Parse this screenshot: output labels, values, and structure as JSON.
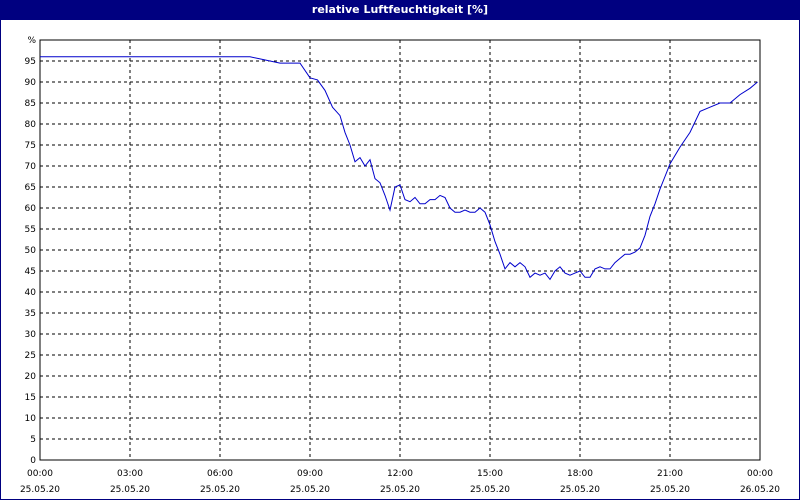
{
  "chart_data": {
    "type": "line",
    "title": "relative Luftfeuchtigkeit [%]",
    "ylabel": "%",
    "ylim": [
      0,
      100
    ],
    "y_ticks": [
      0,
      5,
      10,
      15,
      20,
      25,
      30,
      35,
      40,
      45,
      50,
      55,
      60,
      65,
      70,
      75,
      80,
      85,
      90,
      95
    ],
    "xlim": [
      "25.05.20 00:00",
      "26.05.20 00:00"
    ],
    "x_ticks": [
      {
        "time": "00:00",
        "date": "25.05.20"
      },
      {
        "time": "03:00",
        "date": "25.05.20"
      },
      {
        "time": "06:00",
        "date": "25.05.20"
      },
      {
        "time": "09:00",
        "date": "25.05.20"
      },
      {
        "time": "12:00",
        "date": "25.05.20"
      },
      {
        "time": "15:00",
        "date": "25.05.20"
      },
      {
        "time": "18:00",
        "date": "25.05.20"
      },
      {
        "time": "21:00",
        "date": "25.05.20"
      },
      {
        "time": "00:00",
        "date": "26.05.20"
      }
    ],
    "grid": true,
    "series": [
      {
        "color": "#0000cc",
        "x": [
          "00:00",
          "01:00",
          "02:00",
          "03:00",
          "04:00",
          "05:00",
          "06:00",
          "07:00",
          "07:20",
          "07:40",
          "08:00",
          "08:20",
          "08:40",
          "09:00",
          "09:15",
          "09:30",
          "09:45",
          "10:00",
          "10:10",
          "10:20",
          "10:30",
          "10:40",
          "10:50",
          "11:00",
          "11:10",
          "11:20",
          "11:30",
          "11:40",
          "11:50",
          "12:00",
          "12:10",
          "12:20",
          "12:30",
          "12:40",
          "12:50",
          "13:00",
          "13:10",
          "13:20",
          "13:30",
          "13:40",
          "13:50",
          "14:00",
          "14:10",
          "14:20",
          "14:30",
          "14:40",
          "14:50",
          "15:00",
          "15:10",
          "15:20",
          "15:30",
          "15:40",
          "15:50",
          "16:00",
          "16:10",
          "16:20",
          "16:30",
          "16:40",
          "16:50",
          "17:00",
          "17:10",
          "17:20",
          "17:30",
          "17:40",
          "17:50",
          "18:00",
          "18:10",
          "18:20",
          "18:30",
          "18:40",
          "18:50",
          "19:00",
          "19:10",
          "19:20",
          "19:30",
          "19:40",
          "19:50",
          "20:00",
          "20:10",
          "20:20",
          "20:30",
          "20:40",
          "20:50",
          "21:00",
          "21:20",
          "21:40",
          "22:00",
          "22:20",
          "22:40",
          "23:00",
          "23:20",
          "23:40",
          "23:55"
        ],
        "y": [
          96,
          96,
          96,
          96,
          96,
          96,
          96,
          96,
          95.5,
          95,
          94.5,
          94.5,
          94.5,
          91,
          90.5,
          88,
          84,
          82,
          78,
          75,
          71,
          72,
          70,
          71.5,
          67,
          66,
          63,
          59.5,
          65,
          65.5,
          62,
          61.5,
          62.5,
          61,
          61,
          62,
          62,
          63,
          62.5,
          60,
          59,
          59,
          59.5,
          59,
          59,
          60,
          59,
          56,
          52,
          49,
          45.5,
          47,
          46,
          47,
          46,
          43.5,
          44.5,
          44,
          44.5,
          43,
          45,
          46,
          44.5,
          44,
          44.5,
          45,
          43.5,
          43.5,
          45.5,
          46,
          45.5,
          45.5,
          47,
          48,
          49,
          49,
          49.5,
          50.5,
          53.5,
          58,
          61,
          64.5,
          67.5,
          70.5,
          74.5,
          78,
          83,
          84,
          85,
          85,
          87,
          88.5,
          90
        ]
      }
    ]
  }
}
